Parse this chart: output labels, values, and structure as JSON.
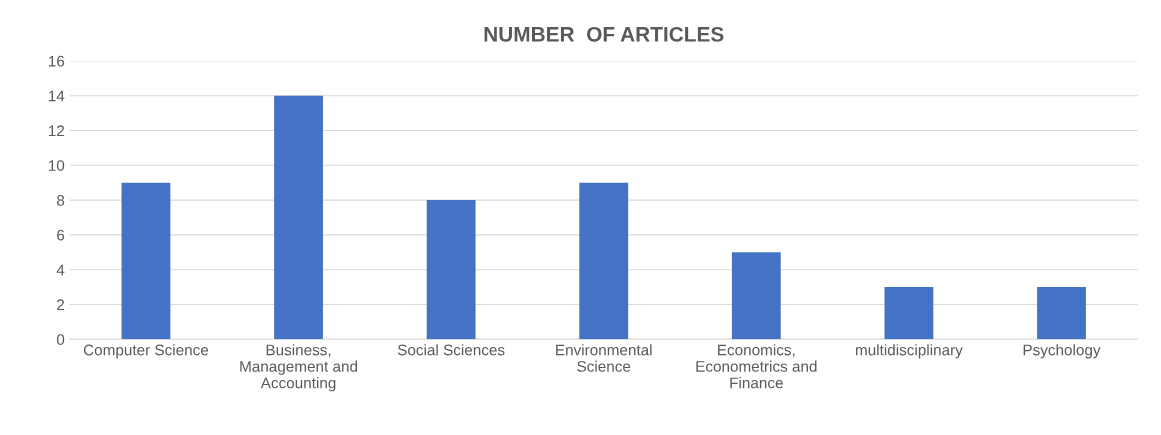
{
  "chart_data": {
    "type": "bar",
    "title": "NUMBER  OF ARTICLES",
    "categories": [
      "Computer Science",
      "Business, Management and Accounting",
      "Social Sciences",
      "Environmental Science",
      "Economics, Econometrics and Finance",
      "multidisciplinary",
      "Psychology"
    ],
    "values": [
      9,
      14,
      8,
      9,
      5,
      3,
      3
    ],
    "color": "#4472c4",
    "ylim": [
      0,
      16
    ],
    "yticks": [
      0,
      2,
      4,
      6,
      8,
      10,
      12,
      14,
      16
    ],
    "grid": "y"
  }
}
